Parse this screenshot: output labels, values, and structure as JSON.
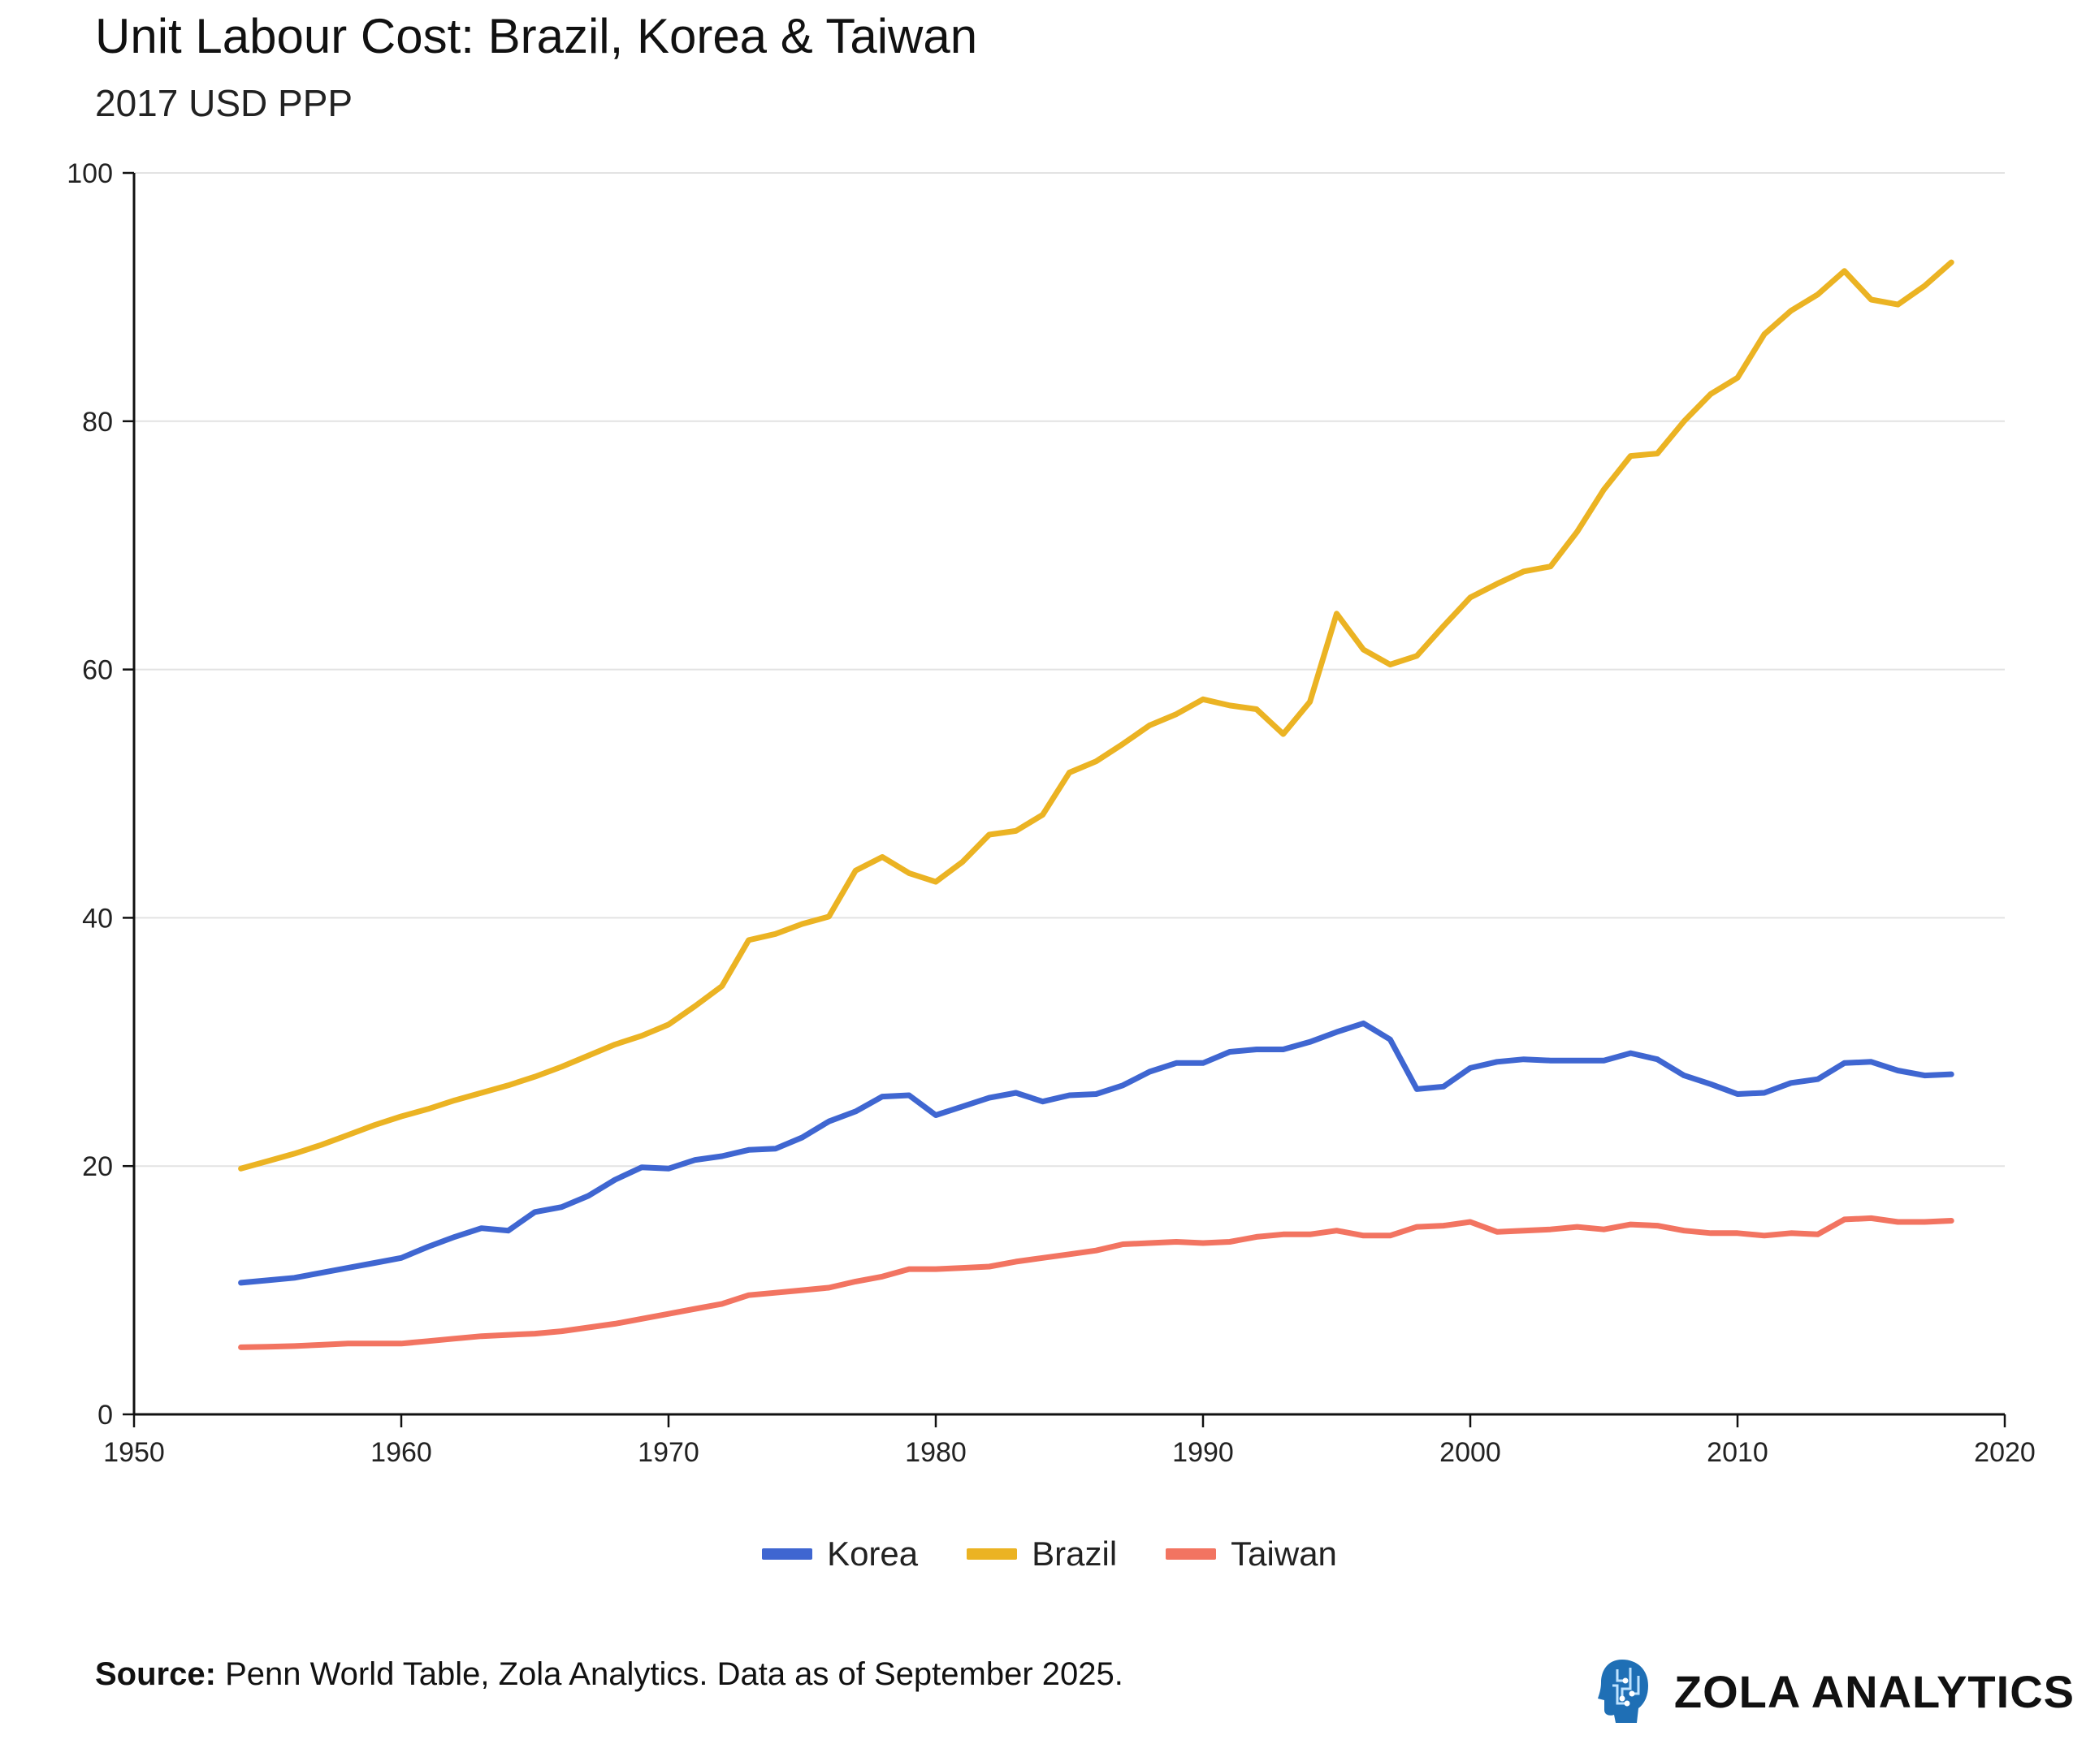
{
  "chart_data": {
    "type": "line",
    "title": "Unit Labour Cost: Brazil, Korea & Taiwan",
    "subtitle": "2017 USD PPP",
    "xlabel": "",
    "ylabel": "",
    "xlim": [
      1950,
      2020
    ],
    "ylim": [
      0,
      100
    ],
    "x_ticks": [
      "1950",
      "1960",
      "1970",
      "1980",
      "1990",
      "2000",
      "2010",
      "2020"
    ],
    "y_ticks": [
      "0",
      "20",
      "40",
      "60",
      "80",
      "100"
    ],
    "grid": "horizontal",
    "legend_position": "bottom-center",
    "x": [
      1954,
      1955,
      1956,
      1957,
      1958,
      1959,
      1960,
      1961,
      1962,
      1963,
      1964,
      1965,
      1966,
      1967,
      1968,
      1969,
      1970,
      1971,
      1972,
      1973,
      1974,
      1975,
      1976,
      1977,
      1978,
      1979,
      1980,
      1981,
      1982,
      1983,
      1984,
      1985,
      1986,
      1987,
      1988,
      1989,
      1990,
      1991,
      1992,
      1993,
      1994,
      1995,
      1996,
      1997,
      1998,
      1999,
      2000,
      2001,
      2002,
      2003,
      2004,
      2005,
      2006,
      2007,
      2008,
      2009,
      2010,
      2011,
      2012,
      2013,
      2014,
      2015,
      2016,
      2017,
      2018
    ],
    "series": [
      {
        "name": "Korea",
        "color": "#3f66d1",
        "values": [
          10.6,
          10.8,
          11.0,
          11.4,
          11.8,
          12.2,
          12.6,
          13.5,
          14.3,
          15.0,
          14.8,
          16.3,
          16.7,
          17.6,
          18.9,
          19.9,
          19.8,
          20.5,
          20.8,
          21.3,
          21.4,
          22.3,
          23.6,
          24.4,
          25.6,
          25.7,
          24.1,
          24.8,
          25.5,
          25.9,
          25.2,
          25.7,
          25.8,
          26.5,
          27.6,
          28.3,
          28.3,
          29.2,
          29.4,
          29.4,
          30.0,
          30.8,
          31.5,
          30.2,
          26.2,
          26.4,
          27.9,
          28.4,
          28.6,
          28.5,
          28.5,
          28.5,
          29.1,
          28.6,
          27.3,
          26.6,
          25.8,
          25.9,
          26.7,
          27.0,
          28.3,
          28.4,
          27.7,
          27.3,
          27.4
        ]
      },
      {
        "name": "Brazil",
        "color": "#ebb323",
        "values": [
          19.8,
          20.4,
          21.0,
          21.7,
          22.5,
          23.3,
          24.0,
          24.6,
          25.3,
          25.9,
          26.5,
          27.2,
          28.0,
          28.9,
          29.8,
          30.5,
          31.4,
          32.9,
          34.5,
          38.2,
          38.7,
          39.5,
          40.1,
          43.8,
          44.9,
          43.6,
          42.9,
          44.5,
          46.7,
          47.0,
          48.3,
          51.7,
          52.6,
          54.0,
          55.5,
          56.4,
          57.6,
          57.1,
          56.8,
          54.8,
          57.4,
          64.5,
          61.6,
          60.4,
          61.1,
          63.5,
          65.8,
          66.9,
          67.9,
          68.3,
          71.1,
          74.5,
          77.2,
          77.4,
          80.0,
          82.2,
          83.5,
          87.0,
          88.9,
          90.2,
          92.1,
          89.8,
          89.4,
          90.9,
          92.8
        ]
      },
      {
        "name": "Taiwan",
        "color": "#f27461",
        "values": [
          5.4,
          5.45,
          5.5,
          5.6,
          5.7,
          5.7,
          5.7,
          5.9,
          6.1,
          6.3,
          6.4,
          6.5,
          6.7,
          7.0,
          7.3,
          7.7,
          8.1,
          8.5,
          8.9,
          9.6,
          9.8,
          10.0,
          10.2,
          10.7,
          11.1,
          11.7,
          11.7,
          11.8,
          11.9,
          12.3,
          12.6,
          12.9,
          13.2,
          13.7,
          13.8,
          13.9,
          13.8,
          13.9,
          14.3,
          14.5,
          14.5,
          14.8,
          14.4,
          14.4,
          15.1,
          15.2,
          15.5,
          14.7,
          14.8,
          14.9,
          15.1,
          14.9,
          15.3,
          15.2,
          14.8,
          14.6,
          14.6,
          14.4,
          14.6,
          14.5,
          15.7,
          15.8,
          15.5,
          15.5,
          15.6
        ]
      }
    ]
  },
  "footer": {
    "source_label": "Source:",
    "source_text": "Penn World Table, Zola Analytics. Data as of September 2025."
  },
  "brand": {
    "name": "ZOLA ANALYTICS",
    "logo_icon": "head-circuit-icon",
    "logo_color": "#1f6fb5"
  }
}
